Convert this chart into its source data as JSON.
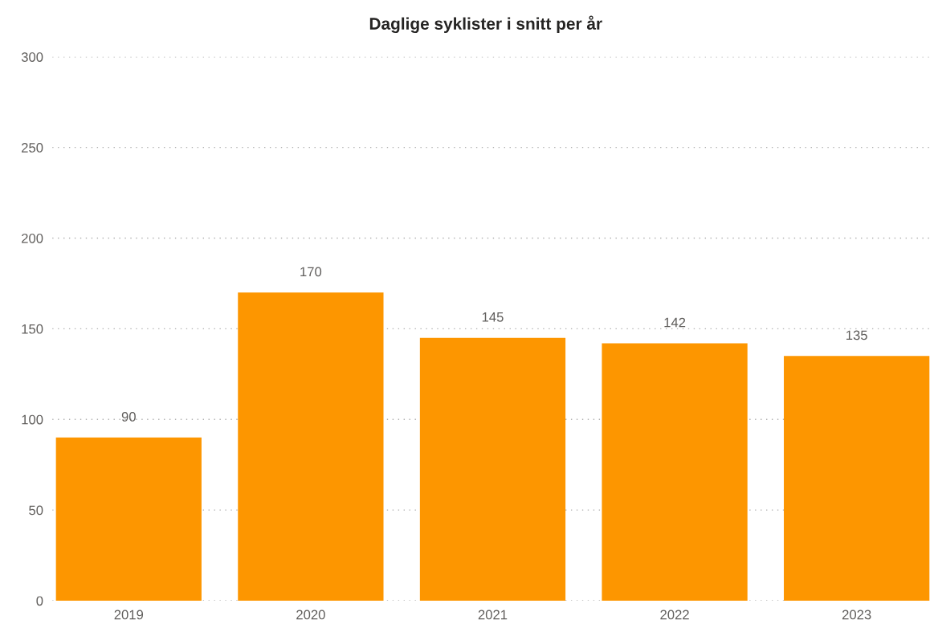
{
  "chart_data": {
    "type": "bar",
    "title": "Daglige syklister i snitt per år",
    "categories": [
      "2019",
      "2020",
      "2021",
      "2022",
      "2023"
    ],
    "values": [
      90,
      170,
      145,
      142,
      135
    ],
    "color": "#fd9600",
    "ylim": [
      0,
      300
    ],
    "yticks": [
      0,
      50,
      100,
      150,
      200,
      250,
      300
    ],
    "grid": "y",
    "data_labels": true
  }
}
